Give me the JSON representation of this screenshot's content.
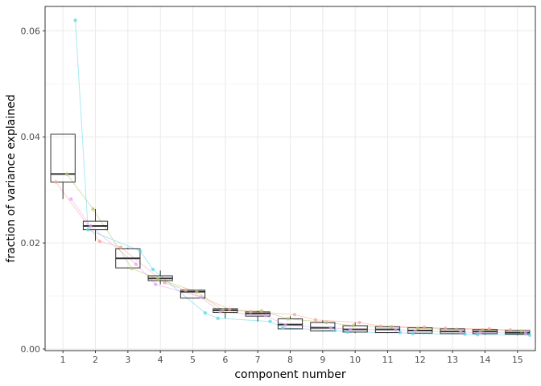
{
  "chart_data": {
    "type": "boxplot",
    "title": "",
    "xlabel": "component number",
    "ylabel": "fraction of variance explained",
    "categories": [
      "1",
      "2",
      "3",
      "4",
      "5",
      "6",
      "7",
      "8",
      "9",
      "10",
      "11",
      "12",
      "13",
      "14",
      "15"
    ],
    "xlim": [
      0.45,
      15.55
    ],
    "ylim": [
      -0.0003,
      0.0646
    ],
    "yticks": [
      0.0,
      0.02,
      0.04,
      0.06
    ],
    "ytick_labels": [
      "0.00",
      "0.02",
      "0.04",
      "0.06"
    ],
    "grid": true,
    "legend": "none",
    "boxes": [
      {
        "x": 1,
        "q1": 0.0315,
        "median": 0.033,
        "q3": 0.0405,
        "lower": 0.0283,
        "upper": 0.0405
      },
      {
        "x": 2,
        "q1": 0.0225,
        "median": 0.0232,
        "q3": 0.0241,
        "lower": 0.0204,
        "upper": 0.0264
      },
      {
        "x": 3,
        "q1": 0.0153,
        "median": 0.0171,
        "q3": 0.0189,
        "lower": 0.0152,
        "upper": 0.0191
      },
      {
        "x": 4,
        "q1": 0.0129,
        "median": 0.0133,
        "q3": 0.0138,
        "lower": 0.0122,
        "upper": 0.0148
      },
      {
        "x": 5,
        "q1": 0.0096,
        "median": 0.0108,
        "q3": 0.0111,
        "lower": 0.0096,
        "upper": 0.0111
      },
      {
        "x": 6,
        "q1": 0.0069,
        "median": 0.0073,
        "q3": 0.0076,
        "lower": 0.0058,
        "upper": 0.0076
      },
      {
        "x": 7,
        "q1": 0.0062,
        "median": 0.0067,
        "q3": 0.007,
        "lower": 0.0052,
        "upper": 0.0072
      },
      {
        "x": 8,
        "q1": 0.0038,
        "median": 0.0046,
        "q3": 0.0057,
        "lower": 0.0037,
        "upper": 0.0062
      },
      {
        "x": 9,
        "q1": 0.0034,
        "median": 0.004,
        "q3": 0.005,
        "lower": 0.0033,
        "upper": 0.0054
      },
      {
        "x": 10,
        "q1": 0.0032,
        "median": 0.0037,
        "q3": 0.0044,
        "lower": 0.003,
        "upper": 0.005
      },
      {
        "x": 11,
        "q1": 0.0031,
        "median": 0.0037,
        "q3": 0.0042,
        "lower": 0.003,
        "upper": 0.0043
      },
      {
        "x": 12,
        "q1": 0.003,
        "median": 0.0035,
        "q3": 0.004,
        "lower": 0.0029,
        "upper": 0.0041
      },
      {
        "x": 13,
        "q1": 0.0029,
        "median": 0.0033,
        "q3": 0.0038,
        "lower": 0.0028,
        "upper": 0.0039
      },
      {
        "x": 14,
        "q1": 0.0029,
        "median": 0.0033,
        "q3": 0.0037,
        "lower": 0.0027,
        "upper": 0.0038
      },
      {
        "x": 15,
        "q1": 0.0028,
        "median": 0.0031,
        "q3": 0.0035,
        "lower": 0.0026,
        "upper": 0.0036
      }
    ],
    "series": [
      {
        "color": "#5ed8ea",
        "values": [
          0.062,
          0.0225,
          0.0185,
          0.015,
          0.0068,
          0.0058,
          0.0052,
          0.004,
          0.0035,
          0.0032,
          0.0031,
          0.0029,
          0.0028,
          0.0027,
          0.0026
        ]
      },
      {
        "color": "#f7a59a",
        "values": [
          0.0315,
          0.0203,
          0.0192,
          0.0125,
          0.0111,
          0.0075,
          0.007,
          0.0065,
          0.0055,
          0.005,
          0.0043,
          0.0041,
          0.0039,
          0.0038,
          0.0036
        ]
      },
      {
        "color": "#b9c46a",
        "values": [
          0.033,
          0.0264,
          0.0152,
          0.0132,
          0.0108,
          0.0073,
          0.0072,
          0.0057,
          0.005,
          0.0044,
          0.0042,
          0.0039,
          0.0037,
          0.0036,
          0.0034
        ]
      },
      {
        "color": "#e6a3f0",
        "values": [
          0.0283,
          0.0232,
          0.016,
          0.0122,
          0.0098,
          0.007,
          0.0063,
          0.0045,
          0.004,
          0.0037,
          0.0036,
          0.0034,
          0.0032,
          0.0031,
          0.003
        ]
      }
    ]
  }
}
